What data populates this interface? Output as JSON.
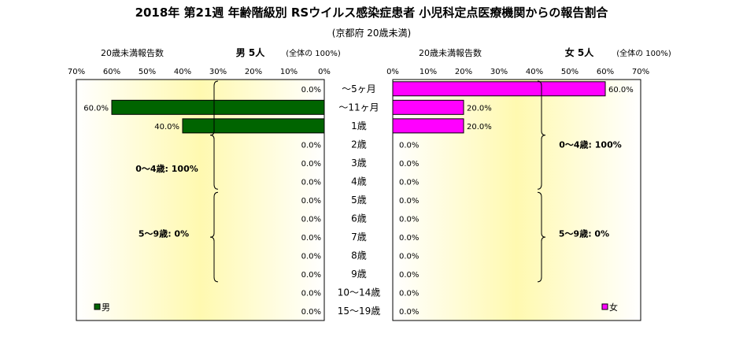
{
  "title": "2018年 第21週 年齢階級別 RSウイルス感染症患者 小児科定点医療機関からの報告割合",
  "subtitle": "(京都府 20歳未満)",
  "chart_data": [
    {
      "type": "bar",
      "orientation": "horizontal",
      "direction": "right-to-left",
      "header_left": "20歳未満報告数",
      "header_title": "男 5人",
      "header_note": "(全体の 100%)",
      "xlim": [
        0,
        70
      ],
      "tick_labels": [
        "70%",
        "60%",
        "50%",
        "40%",
        "30%",
        "20%",
        "10%",
        "0%"
      ],
      "categories": [
        "～5ヶ月",
        "～11ヶ月",
        "1歳",
        "2歳",
        "3歳",
        "4歳",
        "5歳",
        "6歳",
        "7歳",
        "8歳",
        "9歳",
        "10～14歳",
        "15～19歳"
      ],
      "values": [
        0,
        60,
        40,
        0,
        0,
        0,
        0,
        0,
        0,
        0,
        0,
        0,
        0
      ],
      "value_labels": [
        "0.0%",
        "60.0%",
        "40.0%",
        "0.0%",
        "0.0%",
        "0.0%",
        "0.0%",
        "0.0%",
        "0.0%",
        "0.0%",
        "0.0%",
        "0.0%",
        "0.0%"
      ],
      "group_annotations": [
        "0～4歳: 100%",
        "5～9歳: 0%"
      ],
      "legend": "男",
      "legend_position": "bottom-left",
      "bar_color": "#006400"
    },
    {
      "type": "bar",
      "orientation": "horizontal",
      "direction": "left-to-right",
      "header_left": "20歳未満報告数",
      "header_title": "女 5人",
      "header_note": "(全体の 100%)",
      "xlim": [
        0,
        70
      ],
      "tick_labels": [
        "0%",
        "10%",
        "20%",
        "30%",
        "40%",
        "50%",
        "60%",
        "70%"
      ],
      "categories": [
        "～5ヶ月",
        "～11ヶ月",
        "1歳",
        "2歳",
        "3歳",
        "4歳",
        "5歳",
        "6歳",
        "7歳",
        "8歳",
        "9歳",
        "10～14歳",
        "15～19歳"
      ],
      "values": [
        60,
        20,
        20,
        0,
        0,
        0,
        0,
        0,
        0,
        0,
        0,
        0,
        0
      ],
      "value_labels": [
        "60.0%",
        "20.0%",
        "20.0%",
        "0.0%",
        "0.0%",
        "0.0%",
        "0.0%",
        "0.0%",
        "0.0%",
        "0.0%",
        "0.0%",
        "0.0%",
        "0.0%"
      ],
      "group_annotations": [
        "0～4歳: 100%",
        "5～9歳: 0%"
      ],
      "legend": "女",
      "legend_position": "bottom-right",
      "bar_color": "#ff00ff"
    }
  ]
}
